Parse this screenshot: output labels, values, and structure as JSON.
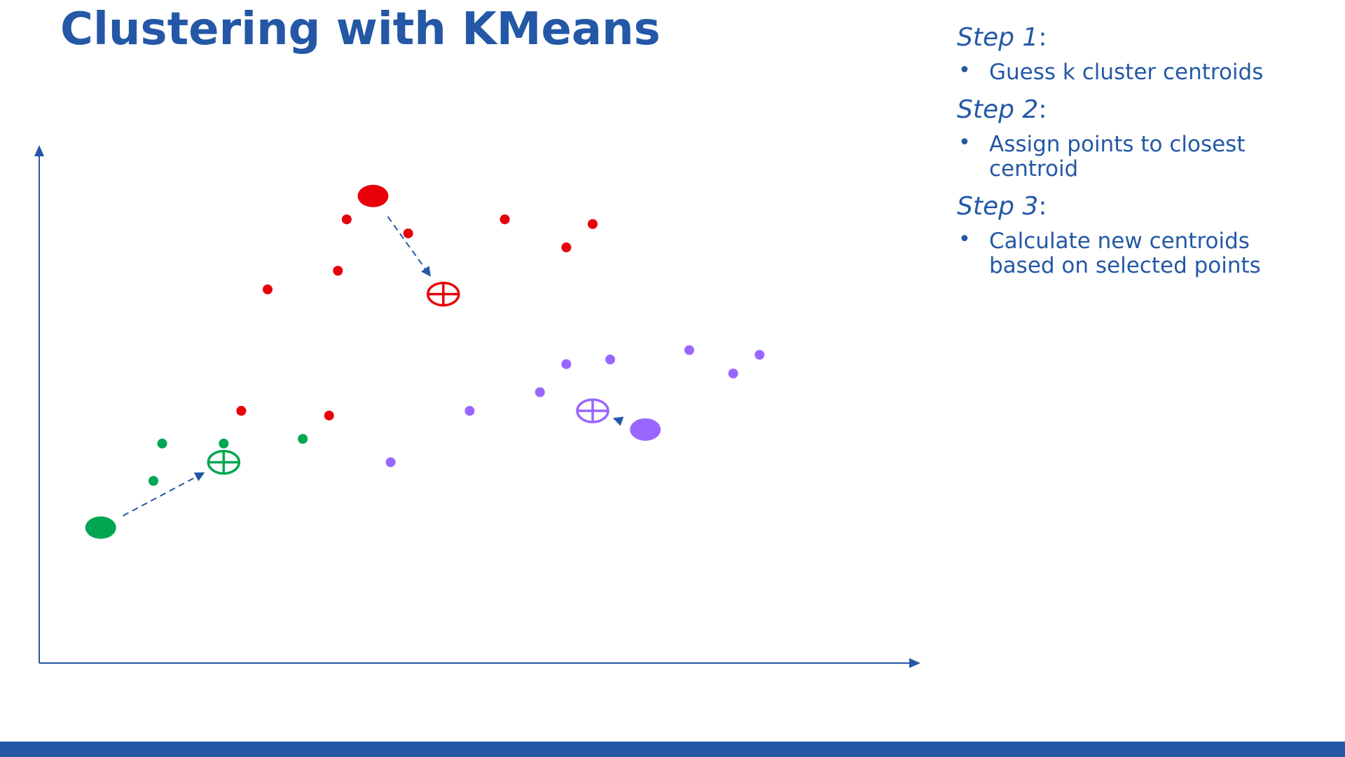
{
  "slide": {
    "title": "Clustering with KMeans"
  },
  "colors": {
    "primary": "#2458A6",
    "red_cluster": "#E8000B",
    "green_cluster": "#00A651",
    "purple_cluster": "#9966FF",
    "background": "#FFFFFF"
  },
  "steps": [
    {
      "label": "Step 1",
      "colon": ":",
      "bullet": "•",
      "text": "Guess k cluster centroids"
    },
    {
      "label": "Step 2",
      "colon": ":",
      "bullet": "•",
      "text": "Assign points to closest centroid"
    },
    {
      "label": "Step 3",
      "colon": ":",
      "bullet": "•",
      "text": "Calculate new centroids based on selected points"
    }
  ],
  "diagram": {
    "clusters": [
      {
        "id": "red",
        "color": "#E8000B",
        "points": [
          [
            3.5,
            9.5
          ],
          [
            4.2,
            9.2
          ],
          [
            5.3,
            9.5
          ],
          [
            6.3,
            9.4
          ],
          [
            6.0,
            8.9
          ],
          [
            3.4,
            8.4
          ],
          [
            2.6,
            8.0
          ],
          [
            2.3,
            5.4
          ],
          [
            3.3,
            5.3
          ]
        ],
        "initial_centroid": [
          3.8,
          10.0
        ],
        "new_centroid": [
          4.6,
          7.9
        ]
      },
      {
        "id": "purple",
        "color": "#9966FF",
        "points": [
          [
            6.5,
            6.5
          ],
          [
            7.4,
            6.7
          ],
          [
            8.2,
            6.6
          ],
          [
            7.9,
            6.2
          ],
          [
            6.0,
            6.4
          ],
          [
            5.7,
            5.8
          ],
          [
            4.9,
            5.4
          ],
          [
            4.0,
            4.3
          ]
        ],
        "initial_centroid": [
          6.9,
          5.0
        ],
        "new_centroid": [
          6.3,
          5.4
        ]
      },
      {
        "id": "green",
        "color": "#00A651",
        "points": [
          [
            1.4,
            4.7
          ],
          [
            2.1,
            4.7
          ],
          [
            3.0,
            4.8
          ],
          [
            1.3,
            3.9
          ]
        ],
        "initial_centroid": [
          0.7,
          2.9
        ],
        "new_centroid": [
          2.1,
          4.3
        ]
      }
    ]
  }
}
